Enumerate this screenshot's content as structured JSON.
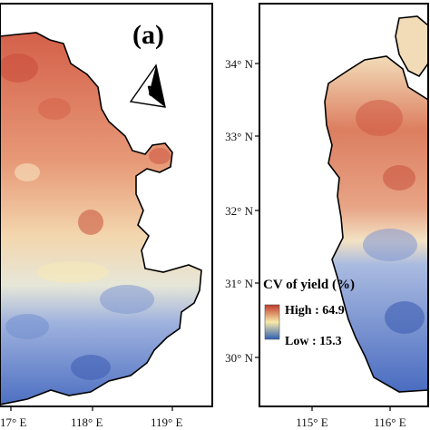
{
  "panel_a": {
    "label": "(a)",
    "north_label": "N",
    "x_ticks": [
      "117° E",
      "118° E",
      "119° E"
    ]
  },
  "panel_b": {
    "y_ticks": [
      "34° N",
      "33° N",
      "32° N",
      "31° N",
      "30° N"
    ],
    "x_ticks": [
      "115° E",
      "116° E"
    ]
  },
  "legend": {
    "title": "CV of yield (%)",
    "high_label": "High : 64.9",
    "low_label": "Low : 15.3",
    "high_color": "#c0392b",
    "mid_color": "#f7e9a8",
    "low_color": "#2e5fb5"
  },
  "colors": {
    "high": "#d8664a",
    "mid": "#f4dfb0",
    "low": "#4f74c4"
  }
}
